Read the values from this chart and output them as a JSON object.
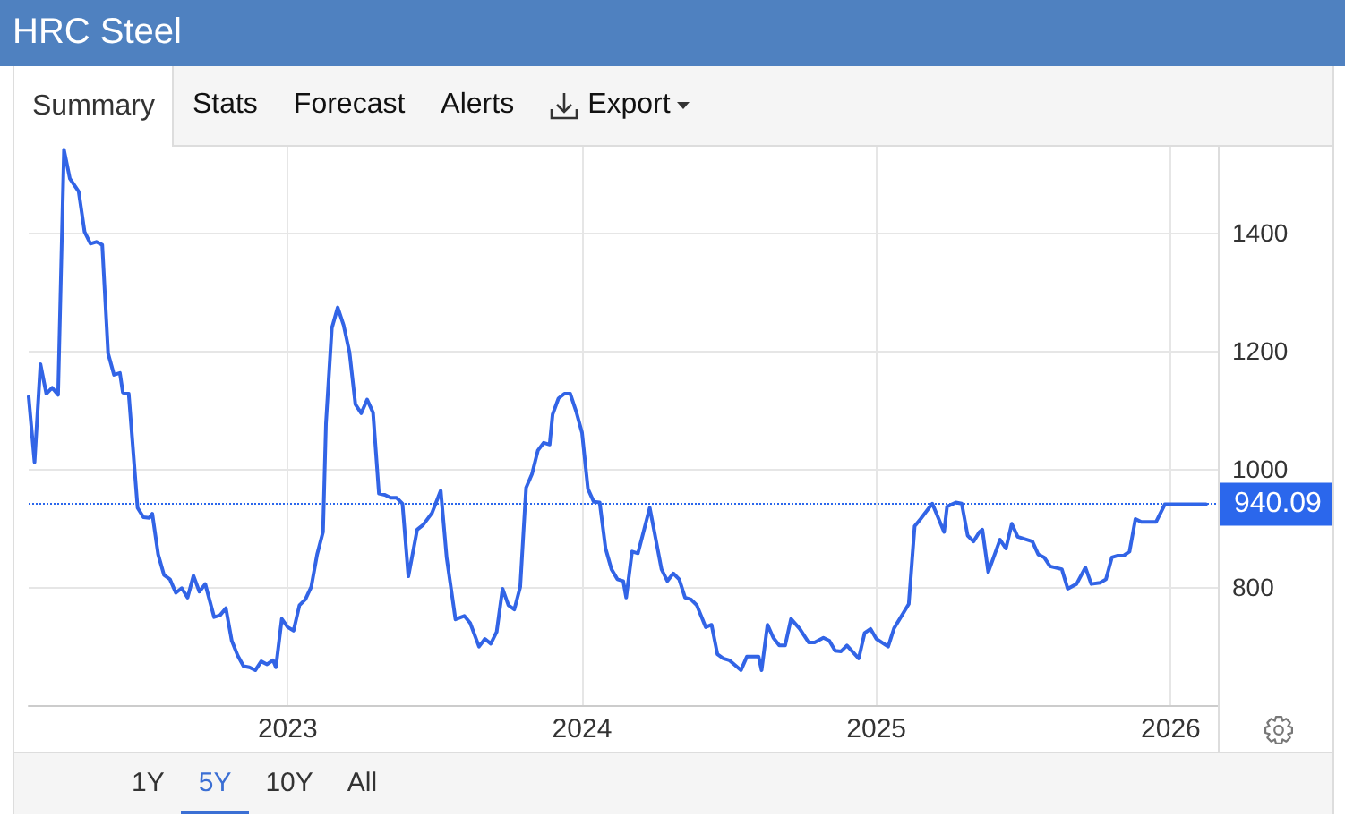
{
  "chart_data": {
    "type": "line",
    "title": "HRC Steel",
    "annotations": [
      "Summary",
      "Stats",
      "Forecast",
      "Alerts",
      "Export",
      "1Y",
      "5Y",
      "10Y",
      "All"
    ],
    "x": [
      2022.12,
      2022.14,
      2022.16,
      2022.18,
      2022.2,
      2022.22,
      2022.24,
      2022.26,
      2022.29,
      2022.31,
      2022.33,
      2022.35,
      2022.37,
      2022.39,
      2022.41,
      2022.43,
      2022.44,
      2022.46,
      2022.49,
      2022.51,
      2022.53,
      2022.54,
      2022.56,
      2022.58,
      2022.6,
      2022.62,
      2022.64,
      2022.66,
      2022.68,
      2022.7,
      2022.72,
      2022.75,
      2022.77,
      2022.79,
      2022.81,
      2022.83,
      2022.85,
      2022.87,
      2022.89,
      2022.91,
      2022.93,
      2022.95,
      2022.96,
      2022.98,
      2023.0,
      2023.02,
      2023.04,
      2023.06,
      2023.08,
      2023.1,
      2023.12,
      2023.13,
      2023.15,
      2023.17,
      2023.19,
      2023.21,
      2023.23,
      2023.25,
      2023.27,
      2023.29,
      2023.31,
      2023.33,
      2023.35,
      2023.37,
      2023.39,
      2023.41,
      2023.44,
      2023.46,
      2023.49,
      2023.52,
      2023.54,
      2023.57,
      2023.6,
      2023.62,
      2023.65,
      2023.67,
      2023.69,
      2023.71,
      2023.73,
      2023.75,
      2023.77,
      2023.79,
      2023.81,
      2023.83,
      2023.85,
      2023.87,
      2023.89,
      2023.9,
      2023.92,
      2023.94,
      2023.96,
      2023.98,
      2024.0,
      2024.02,
      2024.04,
      2024.06,
      2024.08,
      2024.1,
      2024.12,
      2024.14,
      2024.15,
      2024.17,
      2024.19,
      2024.23,
      2024.27,
      2024.29,
      2024.31,
      2024.33,
      2024.35,
      2024.37,
      2024.39,
      2024.42,
      2024.44,
      2024.46,
      2024.48,
      2024.5,
      2024.54,
      2024.56,
      2024.6,
      2024.61,
      2024.63,
      2024.65,
      2024.67,
      2024.69,
      2024.71,
      2024.74,
      2024.77,
      2024.79,
      2024.82,
      2024.84,
      2024.86,
      2024.88,
      2024.9,
      2024.94,
      2024.96,
      2024.98,
      2025.0,
      2025.04,
      2025.06,
      2025.11,
      2025.13,
      2025.15,
      2025.19,
      2025.23,
      2025.24,
      2025.27,
      2025.29,
      2025.31,
      2025.33,
      2025.35,
      2025.36,
      2025.38,
      2025.42,
      2025.44,
      2025.46,
      2025.48,
      2025.53,
      2025.55,
      2025.57,
      2025.59,
      2025.63,
      2025.65,
      2025.68,
      2025.71,
      2025.73,
      2025.76,
      2025.78,
      2025.8,
      2025.82,
      2025.84,
      2025.86,
      2025.88,
      2025.9,
      2025.95,
      2025.98,
      2026.01,
      2026.12
    ],
    "values": [
      1122,
      1011,
      1177,
      1127,
      1137,
      1125,
      1540,
      1491,
      1469,
      1401,
      1381,
      1384,
      1379,
      1195,
      1159,
      1162,
      1129,
      1127,
      934,
      918,
      917,
      924,
      855,
      820,
      813,
      790,
      798,
      782,
      819,
      792,
      805,
      749,
      752,
      764,
      709,
      684,
      666,
      664,
      659,
      674,
      669,
      676,
      664,
      746,
      732,
      726,
      769,
      779,
      800,
      855,
      893,
      1076,
      1238,
      1273,
      1243,
      1197,
      1109,
      1094,
      1117,
      1095,
      958,
      956,
      951,
      951,
      941,
      818,
      897,
      905,
      925,
      963,
      850,
      745,
      751,
      739,
      699,
      712,
      704,
      724,
      797,
      769,
      762,
      800,
      968,
      991,
      1031,
      1044,
      1041,
      1092,
      1119,
      1127,
      1127,
      1097,
      1061,
      966,
      944,
      943,
      865,
      830,
      813,
      810,
      782,
      860,
      857,
      934,
      830,
      810,
      823,
      813,
      782,
      779,
      769,
      732,
      736,
      686,
      679,
      676,
      659,
      682,
      682,
      659,
      736,
      714,
      701,
      701,
      746,
      729,
      706,
      706,
      714,
      709,
      692,
      691,
      701,
      679,
      722,
      729,
      712,
      699,
      730,
      771,
      903,
      915,
      941,
      893,
      936,
      943,
      941,
      887,
      877,
      893,
      897,
      825,
      880,
      865,
      907,
      885,
      877,
      855,
      850,
      835,
      830,
      797,
      805,
      833,
      805,
      807,
      813,
      850,
      853,
      853,
      860,
      915,
      910,
      910,
      940,
      940,
      940.09
    ],
    "color": "#3264e6",
    "xlim": [
      2022.12,
      2026.16
    ],
    "xticks": [
      2023,
      2024,
      2025,
      2026
    ],
    "ylim": [
      600,
      1545
    ],
    "yticks": [
      800,
      1000,
      1200,
      1400
    ],
    "grid": true,
    "ref_lines": [
      {
        "axis": "y",
        "value": 940.09,
        "label": "940.09",
        "color": "#2b67ec",
        "line_style": "dotted"
      }
    ]
  }
}
